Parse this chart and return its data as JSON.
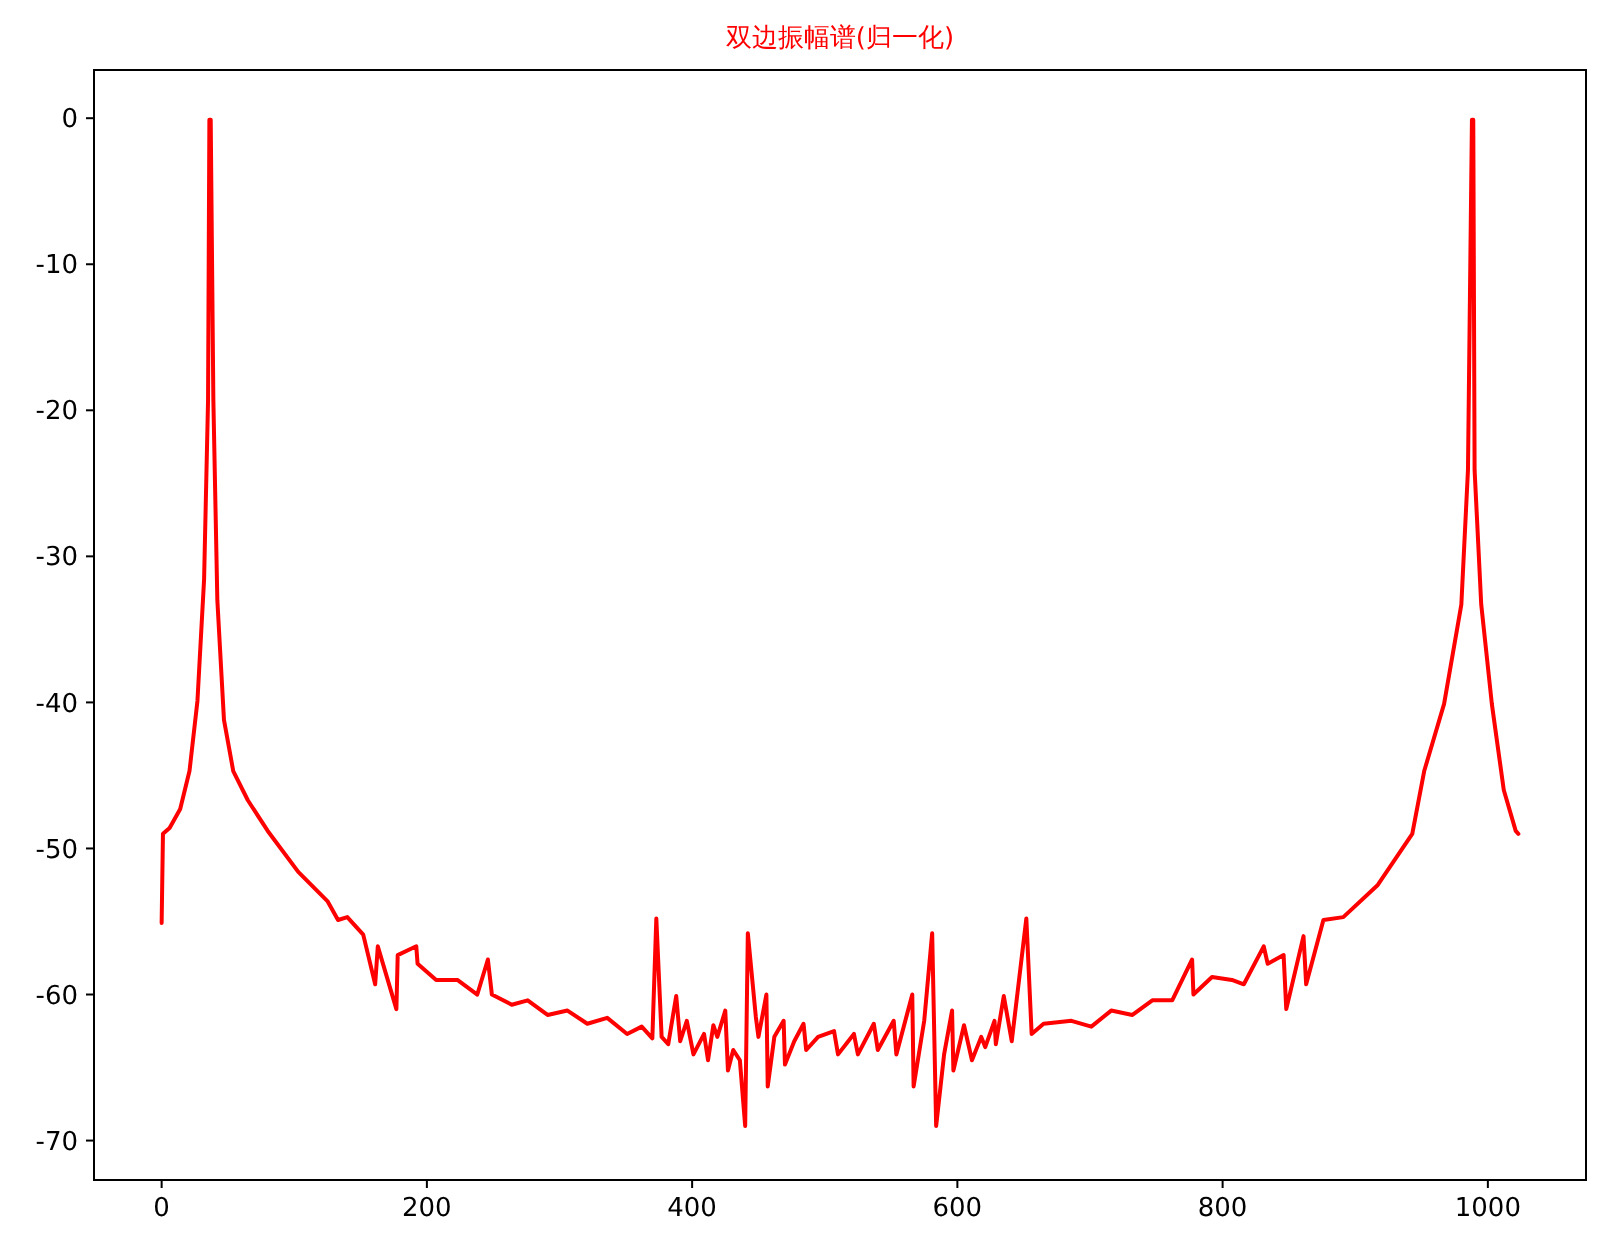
{
  "chart_data": {
    "type": "line",
    "title": "双边振幅谱(归一化)",
    "xlim": [
      -51,
      1074
    ],
    "ylim": [
      -72.7,
      3.3
    ],
    "xticks": [
      0,
      200,
      400,
      600,
      800,
      1000
    ],
    "yticks": [
      0,
      -10,
      -20,
      -30,
      -40,
      -50,
      -60,
      -70
    ],
    "grid": false,
    "marker": "none",
    "line_style": "solid",
    "series": [
      {
        "color": "#ff0000",
        "x": [
          0,
          1,
          6,
          14,
          21,
          27,
          32,
          35,
          36,
          37,
          39,
          42,
          47,
          54,
          65,
          80,
          103,
          125,
          133,
          140,
          152,
          161,
          163,
          177,
          178,
          192,
          193,
          207,
          223,
          238,
          246,
          249,
          264,
          276,
          291,
          306,
          321,
          336,
          351,
          362,
          370,
          373,
          377,
          382,
          388,
          391,
          396,
          401,
          409,
          412,
          416,
          419,
          425,
          427,
          431,
          436,
          440,
          442,
          448,
          450,
          456,
          457,
          462,
          469,
          470,
          477,
          484,
          486,
          495,
          507,
          510,
          522,
          525,
          537,
          540,
          552,
          554,
          566,
          567,
          575,
          581,
          584,
          590,
          596,
          597,
          605,
          611,
          618,
          621,
          628,
          629,
          635,
          641,
          652,
          656,
          665,
          686,
          701,
          716,
          732,
          747,
          762,
          777,
          778,
          792,
          807,
          816,
          831,
          834,
          846,
          848,
          861,
          863,
          876,
          891,
          917,
          943,
          952,
          967,
          980,
          985,
          988,
          989,
          990,
          995,
          1003,
          1012,
          1021,
          1023
        ],
        "values": [
          -55.1,
          -49,
          -48.6,
          -47.3,
          -44.7,
          -39.9,
          -31.6,
          -19.3,
          -0.1,
          -0.1,
          -19.3,
          -33,
          -41.2,
          -44.7,
          -46.7,
          -48.8,
          -51.6,
          -53.6,
          -54.9,
          -54.7,
          -55.9,
          -59.3,
          -56.7,
          -61,
          -57.3,
          -56.7,
          -57.9,
          -59,
          -59,
          -60,
          -57.6,
          -60,
          -60.7,
          -60.4,
          -61.4,
          -61.1,
          -62,
          -61.6,
          -62.7,
          -62.2,
          -63,
          -54.8,
          -62.9,
          -63.4,
          -60.1,
          -63.2,
          -61.8,
          -64.1,
          -62.7,
          -64.5,
          -62.1,
          -62.9,
          -61.1,
          -65.2,
          -63.8,
          -64.5,
          -69,
          -55.8,
          -61.5,
          -62.9,
          -60,
          -66.3,
          -62.9,
          -61.8,
          -64.8,
          -63.2,
          -62,
          -63.8,
          -62.9,
          -62.5,
          -64.1,
          -62.7,
          -64.1,
          -62,
          -63.8,
          -61.8,
          -64.1,
          -60,
          -66.3,
          -61.8,
          -55.8,
          -69,
          -64.1,
          -61.1,
          -65.2,
          -62.1,
          -64.5,
          -62.9,
          -63.6,
          -61.8,
          -63.4,
          -60.1,
          -63.2,
          -54.8,
          -62.7,
          -62,
          -61.8,
          -62.2,
          -61.1,
          -61.4,
          -60.4,
          -60.4,
          -57.6,
          -60,
          -58.8,
          -59,
          -59.3,
          -56.7,
          -57.9,
          -57.3,
          -61,
          -56,
          -59.3,
          -54.9,
          -54.7,
          -52.5,
          -49,
          -44.7,
          -40.1,
          -33.3,
          -24.1,
          -0.1,
          -0.1,
          -24.1,
          -33.3,
          -40.1,
          -46,
          -48.8,
          -49
        ]
      }
    ]
  }
}
